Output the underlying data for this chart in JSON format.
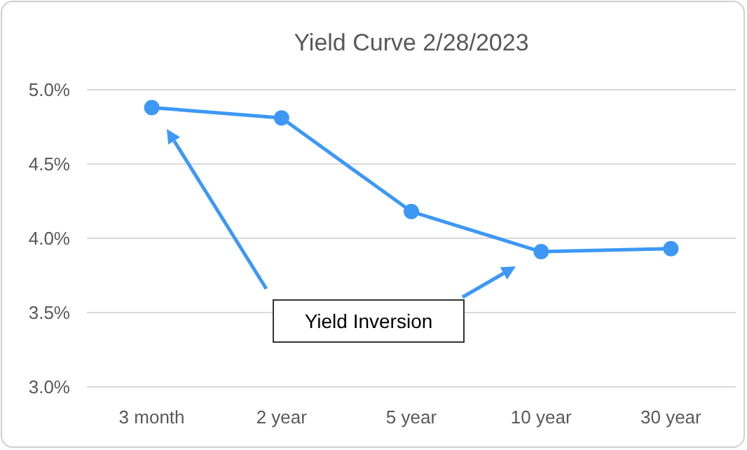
{
  "chart_data": {
    "type": "line",
    "title": "Yield Curve 2/28/2023",
    "categories": [
      "3 month",
      "2 year",
      "5 year",
      "10 year",
      "30 year"
    ],
    "series": [
      {
        "color": "#3d98f5",
        "values": [
          4.88,
          4.81,
          4.18,
          3.91,
          3.93
        ]
      }
    ],
    "ylim": [
      3.0,
      5.0
    ],
    "yticks": [
      {
        "value": 3.0,
        "label": "3.0%"
      },
      {
        "value": 3.5,
        "label": "3.5%"
      },
      {
        "value": 4.0,
        "label": "4.0%"
      },
      {
        "value": 4.5,
        "label": "4.5%"
      },
      {
        "value": 5.0,
        "label": "5.0%"
      }
    ],
    "grid": "y",
    "marker": "circle",
    "line_style": "solid",
    "annotations": [
      "Yield Inversion"
    ]
  }
}
